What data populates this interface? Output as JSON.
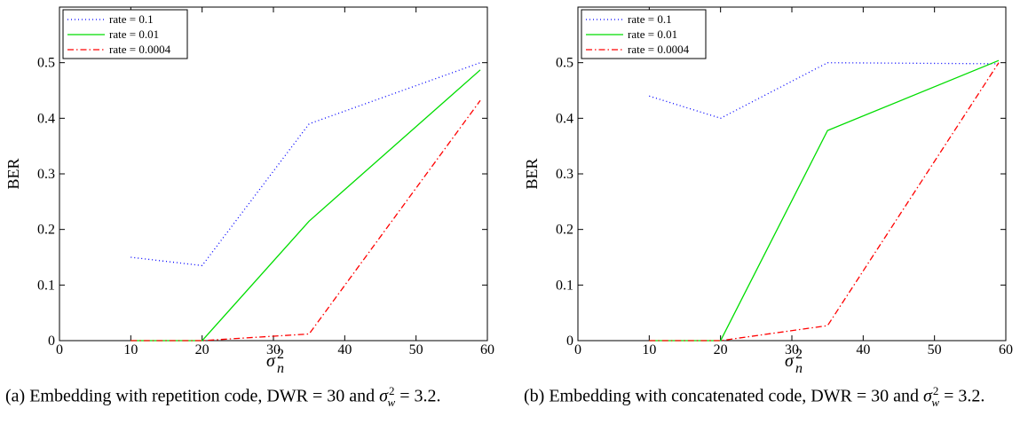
{
  "chart_data": [
    {
      "type": "line",
      "title": "",
      "xlabel": "σ_n^2",
      "xlabel_main": "σ",
      "xlabel_sub": "n",
      "xlabel_sup": "2",
      "ylabel": "BER",
      "xlim": [
        0,
        60
      ],
      "ylim": [
        0,
        0.6
      ],
      "xticks": [
        0,
        10,
        20,
        30,
        40,
        50,
        60
      ],
      "yticks": [
        0,
        0.1,
        0.2,
        0.3,
        0.4,
        0.5
      ],
      "ytick_labels": [
        "0",
        "0.1",
        "0.2",
        "0.3",
        "0.4",
        "0.5"
      ],
      "grid": false,
      "legend_position": "top-left",
      "series": [
        {
          "name": "rate = 0.1",
          "color": "#0000ff",
          "style": "dotted",
          "x": [
            10,
            20,
            35,
            59
          ],
          "y": [
            0.15,
            0.135,
            0.39,
            0.5
          ]
        },
        {
          "name": "rate = 0.01",
          "color": "#00dd00",
          "style": "solid",
          "x": [
            10,
            20,
            35,
            59
          ],
          "y": [
            0.0,
            0.0,
            0.215,
            0.487
          ]
        },
        {
          "name": "rate = 0.0004",
          "color": "#ff0000",
          "style": "dashdot",
          "x": [
            10,
            20,
            35,
            59
          ],
          "y": [
            0.0,
            0.0,
            0.012,
            0.432
          ]
        }
      ],
      "caption": "(a) Embedding with repetition code, DWR = 30 and σ_w^2 = 3.2.",
      "caption_prefix": "(a) Embedding with repetition code, DWR = 30 and ",
      "caption_sigma": "σ",
      "caption_sub": "w",
      "caption_sup": "2",
      "caption_suffix": " = 3.2."
    },
    {
      "type": "line",
      "title": "",
      "xlabel": "σ_n^2",
      "xlabel_main": "σ",
      "xlabel_sub": "n",
      "xlabel_sup": "2",
      "ylabel": "BER",
      "xlim": [
        0,
        60
      ],
      "ylim": [
        0,
        0.6
      ],
      "xticks": [
        0,
        10,
        20,
        30,
        40,
        50,
        60
      ],
      "yticks": [
        0,
        0.1,
        0.2,
        0.3,
        0.4,
        0.5
      ],
      "ytick_labels": [
        "0",
        "0.1",
        "0.2",
        "0.3",
        "0.4",
        "0.5"
      ],
      "grid": false,
      "legend_position": "top-left",
      "series": [
        {
          "name": "rate = 0.1",
          "color": "#0000ff",
          "style": "dotted",
          "x": [
            10,
            20,
            35,
            59
          ],
          "y": [
            0.44,
            0.4,
            0.5,
            0.498
          ]
        },
        {
          "name": "rate = 0.01",
          "color": "#00dd00",
          "style": "solid",
          "x": [
            10,
            20,
            35,
            59
          ],
          "y": [
            0.0,
            0.0,
            0.378,
            0.504
          ]
        },
        {
          "name": "rate = 0.0004",
          "color": "#ff0000",
          "style": "dashdot",
          "x": [
            10,
            20,
            35,
            59
          ],
          "y": [
            0.0,
            0.0,
            0.027,
            0.5
          ]
        }
      ],
      "caption": "(b) Embedding with concatenated code, DWR = 30 and σ_w^2 = 3.2.",
      "caption_prefix": "(b) Embedding with concatenated code, DWR = 30 and ",
      "caption_sigma": "σ",
      "caption_sub": "w",
      "caption_sup": "2",
      "caption_suffix": " = 3.2."
    }
  ]
}
